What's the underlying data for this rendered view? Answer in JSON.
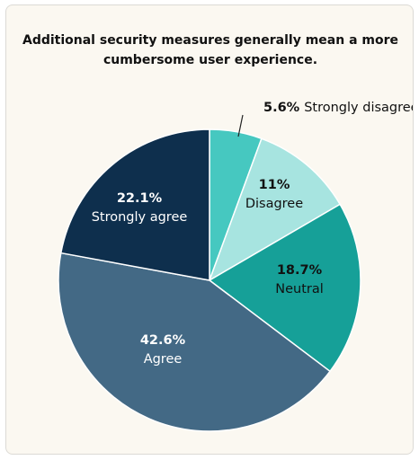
{
  "chart_data": {
    "type": "pie",
    "title": "Additional security measures generally mean a more\ncumbersome user experience.",
    "slices": [
      {
        "label": "Strongly disagree",
        "percent_label": "5.6%",
        "value": 5.6,
        "color": "#46c8c0",
        "label_color": "#111111"
      },
      {
        "label": "Disagree",
        "percent_label": "11%",
        "value": 11.0,
        "color": "#a7e4e0",
        "label_color": "#111111"
      },
      {
        "label": "Neutral",
        "percent_label": "18.7%",
        "value": 18.7,
        "color": "#16a098",
        "label_color": "#111111"
      },
      {
        "label": "Agree",
        "percent_label": "42.6%",
        "value": 42.6,
        "color": "#436985",
        "label_color": "#ffffff"
      },
      {
        "label": "Strongly agree",
        "percent_label": "22.1%",
        "value": 22.1,
        "color": "#0e2f4d",
        "label_color": "#ffffff"
      }
    ]
  }
}
